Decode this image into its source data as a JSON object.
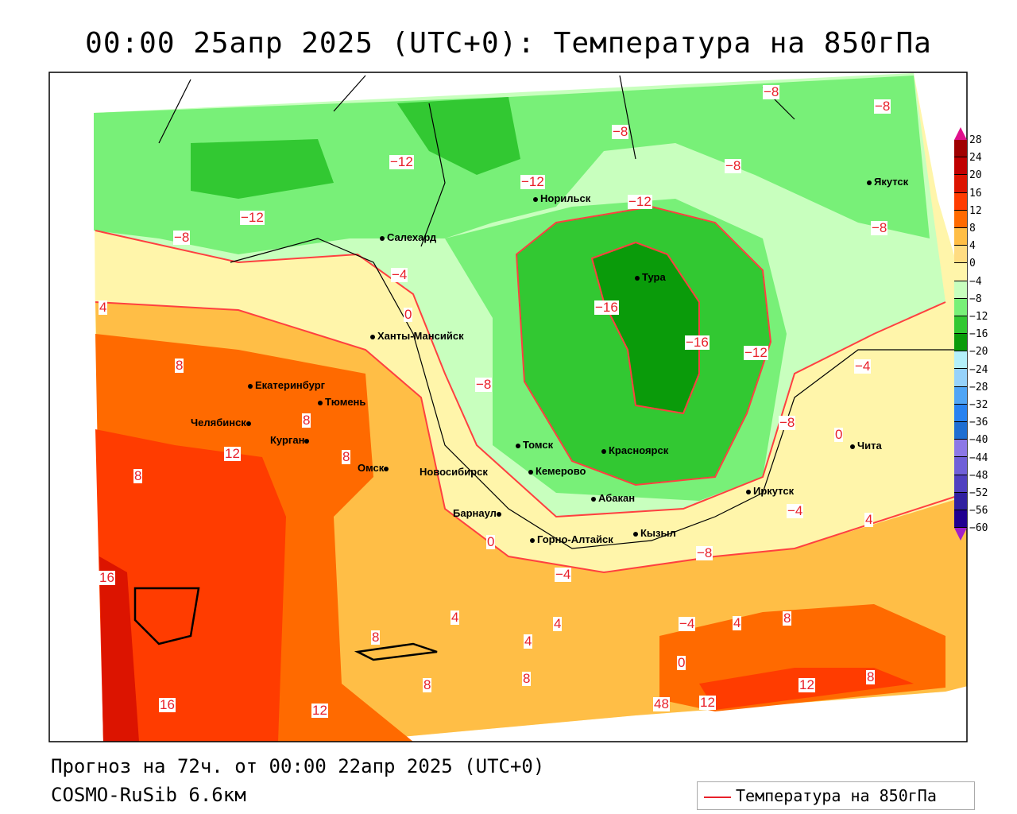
{
  "title": "00:00 25апр 2025 (UTC+0): Температура на 850гПа",
  "footer": {
    "forecast": "Прогноз на 72ч. от 00:00 22апр 2025 (UTC+0)",
    "model": "COSMO-RuSib 6.6км"
  },
  "legend": {
    "label": "Температура на 850гПа",
    "color": "#e8202a"
  },
  "colorbar": {
    "levels": [
      "28",
      "24",
      "20",
      "16",
      "12",
      "8",
      "4",
      "0",
      "−4",
      "−8",
      "−12",
      "−16",
      "−20",
      "−24",
      "−28",
      "−32",
      "−36",
      "−40",
      "−44",
      "−48",
      "−52",
      "−56",
      "−60"
    ],
    "colors": [
      "#a00000",
      "#c00000",
      "#dc1400",
      "#ff3c00",
      "#ff6a00",
      "#ffbe46",
      "#ffdc82",
      "#fff5aa",
      "#c8ffbe",
      "#78f078",
      "#32c832",
      "#0a9b0a",
      "#b4f0fa",
      "#96d2fa",
      "#50a5f5",
      "#2882f0",
      "#1e6ed2",
      "#8c78e6",
      "#7060d8",
      "#5040c0",
      "#3020a0",
      "#200090"
    ]
  },
  "cities": [
    "Салехард",
    "Норильск",
    "Тура",
    "Якутск",
    "Ханты-Мансийск",
    "Екатеринбург",
    "Тюмень",
    "Челябинск",
    "Курган",
    "Омск",
    "Новосибирск",
    "Томск",
    "Красноярск",
    "Кемерово",
    "Барнаул",
    "Абакан",
    "Иркутск",
    "Чита",
    "Горно-Алтайск",
    "Кызыл"
  ],
  "contour_labels": [
    "−8",
    "−8",
    "−8",
    "−8",
    "−8",
    "−12",
    "−12",
    "−12",
    "−12",
    "−8",
    "−4",
    "0",
    "4",
    "−4",
    "−16",
    "−16",
    "−12",
    "−8",
    "−8",
    "−4",
    "0",
    "8",
    "8",
    "8",
    "16",
    "16",
    "12",
    "8",
    "4",
    "8",
    "8",
    "4",
    "4",
    "0",
    "−4",
    "8",
    "8",
    "12",
    "12",
    "12",
    "8",
    "48",
    "0",
    "−4",
    "4",
    "−8",
    "4"
  ]
}
